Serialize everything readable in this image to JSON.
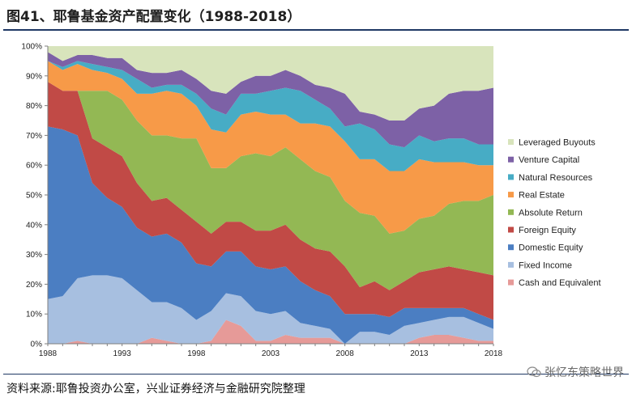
{
  "header": {
    "title": "图41、耶鲁基金资产配置变化（1988-2018）"
  },
  "footer": {
    "source": "资料来源:耶鲁投资办公室，兴业证券经济与金融研究院整理",
    "watermark": "张忆东策略世界"
  },
  "colors": {
    "Cash and Equivalent": "#e69a98",
    "Fixed Income": "#a7bfe0",
    "Domestic Equity": "#4b7ec2",
    "Foreign Equity": "#c14a46",
    "Absolute Return": "#93b854",
    "Real Estate": "#f79a48",
    "Natural Resources": "#47acc5",
    "Venture Capital": "#7d61a6",
    "Leveraged Buyouts": "#d8e4bc",
    "rule": "#1f3864"
  },
  "chart_data": {
    "type": "area",
    "stacked": true,
    "title": "",
    "xlabel": "",
    "ylabel": "",
    "xlim": [
      1988,
      2018
    ],
    "ylim": [
      0,
      100
    ],
    "xticks": [
      1988,
      1993,
      1998,
      2003,
      2008,
      2013,
      2018
    ],
    "yticks": [
      "0%",
      "10%",
      "20%",
      "30%",
      "40%",
      "50%",
      "60%",
      "70%",
      "80%",
      "90%",
      "100%"
    ],
    "x": [
      1988,
      1989,
      1990,
      1991,
      1992,
      1993,
      1994,
      1995,
      1996,
      1997,
      1998,
      1999,
      2000,
      2001,
      2002,
      2003,
      2004,
      2005,
      2006,
      2007,
      2008,
      2009,
      2010,
      2011,
      2012,
      2013,
      2014,
      2015,
      2016,
      2017,
      2018
    ],
    "series": [
      {
        "name": "Cash and Equivalent",
        "values": [
          0,
          0,
          1,
          0,
          0,
          0,
          0,
          2,
          1,
          0,
          0,
          1,
          8,
          6,
          1,
          1,
          3,
          2,
          2,
          2,
          0,
          0,
          0,
          0,
          0,
          2,
          3,
          3,
          2,
          1,
          1
        ]
      },
      {
        "name": "Fixed Income",
        "values": [
          15,
          16,
          21,
          23,
          23,
          22,
          18,
          12,
          13,
          12,
          8,
          10,
          9,
          10,
          10,
          9,
          8,
          5,
          4,
          3,
          0,
          4,
          4,
          3,
          6,
          5,
          5,
          6,
          7,
          6,
          4
        ]
      },
      {
        "name": "Domestic Equity",
        "values": [
          58,
          56,
          48,
          31,
          26,
          24,
          21,
          22,
          23,
          22,
          19,
          15,
          14,
          15,
          15,
          15,
          15,
          14,
          12,
          11,
          10,
          6,
          6,
          6,
          6,
          5,
          4,
          3,
          3,
          3,
          3
        ]
      },
      {
        "name": "Foreign Equity",
        "values": [
          15,
          13,
          15,
          15,
          17,
          17,
          15,
          12,
          12,
          11,
          14,
          11,
          10,
          10,
          12,
          13,
          14,
          14,
          14,
          15,
          16,
          9,
          11,
          9,
          9,
          12,
          13,
          14,
          13,
          14,
          15
        ]
      },
      {
        "name": "Absolute Return",
        "values": [
          0,
          0,
          0,
          16,
          19,
          19,
          21,
          22,
          21,
          24,
          28,
          22,
          18,
          22,
          26,
          25,
          26,
          27,
          26,
          25,
          22,
          25,
          22,
          19,
          17,
          18,
          18,
          21,
          23,
          24,
          27
        ]
      },
      {
        "name": "Real Estate",
        "values": [
          7,
          7,
          9,
          7,
          6,
          7,
          9,
          14,
          15,
          15,
          11,
          13,
          12,
          14,
          14,
          14,
          11,
          12,
          16,
          17,
          20,
          18,
          19,
          21,
          20,
          20,
          18,
          14,
          13,
          12,
          10
        ]
      },
      {
        "name": "Natural Resources",
        "values": [
          0,
          1,
          1,
          2,
          2,
          3,
          5,
          2,
          2,
          3,
          4,
          7,
          6,
          7,
          6,
          8,
          9,
          11,
          8,
          6,
          5,
          12,
          10,
          9,
          8,
          8,
          7,
          8,
          8,
          7,
          7
        ]
      },
      {
        "name": "Venture Capital",
        "values": [
          3,
          2,
          2,
          3,
          3,
          4,
          3,
          5,
          4,
          5,
          5,
          6,
          7,
          4,
          6,
          5,
          6,
          5,
          5,
          7,
          11,
          4,
          5,
          8,
          9,
          9,
          12,
          15,
          16,
          18,
          19
        ]
      },
      {
        "name": "Leveraged Buyouts",
        "values": [
          2,
          5,
          3,
          3,
          4,
          4,
          8,
          9,
          9,
          8,
          11,
          15,
          16,
          12,
          10,
          10,
          8,
          10,
          13,
          14,
          16,
          22,
          23,
          25,
          25,
          21,
          20,
          16,
          15,
          15,
          14
        ]
      }
    ],
    "legend": [
      "Leveraged Buyouts",
      "Venture Capital",
      "Natural Resources",
      "Real Estate",
      "Absolute Return",
      "Foreign Equity",
      "Domestic Equity",
      "Fixed Income",
      "Cash and Equivalent"
    ],
    "legend_position": "right"
  }
}
